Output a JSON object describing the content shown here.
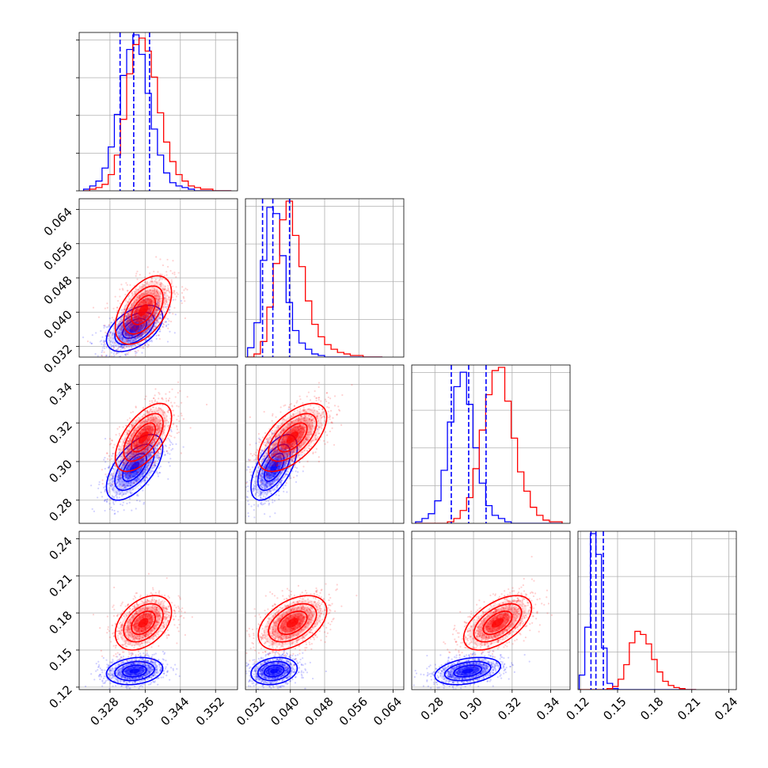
{
  "chart_data": {
    "type": "scatter",
    "subtype": "corner-plot",
    "grid": true,
    "series": [
      {
        "color": "#0000ff"
      },
      {
        "color": "#ff0000"
      }
    ],
    "parameters": [
      {
        "range": [
          0.321,
          0.357
        ],
        "ticks": [
          "0.328",
          "0.336",
          "0.344",
          "0.352"
        ]
      },
      {
        "range": [
          0.0295,
          0.0665
        ],
        "ticks": [
          "0.032",
          "0.040",
          "0.048",
          "0.056",
          "0.064"
        ]
      },
      {
        "range": [
          0.268,
          0.35
        ],
        "ticks": [
          "0.28",
          "0.30",
          "0.32",
          "0.34"
        ]
      },
      {
        "range": [
          0.118,
          0.246
        ],
        "ticks": [
          "0.12",
          "0.15",
          "0.18",
          "0.21",
          "0.24"
        ]
      }
    ],
    "series_stats": [
      {
        "mean": [
          0.3336,
          0.0362,
          0.297,
          0.133
        ],
        "sd": [
          0.0032,
          0.0027,
          0.0085,
          0.0055
        ],
        "rho": [
          [
            1,
            0.5,
            0.6,
            0.2
          ],
          [
            0.5,
            1,
            0.6,
            0.2
          ],
          [
            0.6,
            0.6,
            1,
            0.35
          ],
          [
            0.2,
            0.2,
            0.35,
            1
          ]
        ]
      },
      {
        "mean": [
          0.3356,
          0.0405,
          0.3125,
          0.172
        ],
        "sd": [
          0.0032,
          0.004,
          0.0088,
          0.011
        ],
        "rho": [
          [
            1,
            0.5,
            0.6,
            0.4
          ],
          [
            0.5,
            1,
            0.6,
            0.45
          ],
          [
            0.6,
            0.6,
            1,
            0.55
          ],
          [
            0.4,
            0.45,
            0.55,
            1
          ]
        ]
      }
    ],
    "quantile_lines": [
      {
        "series": 0,
        "values": [
          [
            0.3303,
            0.3334,
            0.337
          ],
          [
            0.0335,
            0.0359,
            0.0398
          ],
          [
            0.2885,
            0.2975,
            0.3065
          ],
          [
            0.1285,
            0.1325,
            0.1385
          ]
        ]
      }
    ],
    "histograms": [
      {
        "bins": [
          0.322,
          0.3234,
          0.3248,
          0.3262,
          0.3276,
          0.329,
          0.3304,
          0.3318,
          0.3332,
          0.3346,
          0.336,
          0.3374,
          0.3388,
          0.3402,
          0.3416,
          0.343,
          0.3444,
          0.3458,
          0.3472,
          0.3486,
          0.35,
          0.3514,
          0.3528,
          0.3542,
          0.3556
        ],
        "counts": [
          [
            1,
            3,
            6,
            14,
            27,
            47,
            71,
            87,
            96,
            84,
            60,
            38,
            22,
            11,
            5,
            3,
            2,
            1,
            0,
            0,
            0,
            0,
            0,
            0
          ],
          [
            0,
            1,
            2,
            4,
            10,
            22,
            44,
            72,
            90,
            94,
            86,
            70,
            48,
            30,
            18,
            10,
            6,
            3,
            2,
            1,
            1,
            0,
            0,
            0
          ]
        ]
      },
      {
        "bins": [
          0.03,
          0.0315,
          0.033,
          0.0345,
          0.036,
          0.0375,
          0.039,
          0.0405,
          0.042,
          0.0435,
          0.045,
          0.0465,
          0.048,
          0.0495,
          0.051,
          0.0525,
          0.054,
          0.0555,
          0.057,
          0.0585,
          0.06,
          0.0615
        ],
        "counts": [
          [
            6,
            22,
            62,
            96,
            92,
            65,
            35,
            17,
            9,
            5,
            2,
            1,
            0,
            0,
            0,
            0,
            0,
            0,
            0,
            0,
            0,
            0
          ],
          [
            0,
            2,
            10,
            32,
            60,
            88,
            100,
            78,
            58,
            36,
            21,
            13,
            8,
            5,
            3,
            2,
            1,
            1,
            0,
            0,
            0,
            0
          ]
        ]
      },
      {
        "bins": [
          0.27,
          0.2733,
          0.2766,
          0.2799,
          0.2832,
          0.2865,
          0.2898,
          0.2931,
          0.2964,
          0.2997,
          0.303,
          0.3063,
          0.3096,
          0.3129,
          0.3162,
          0.3195,
          0.3228,
          0.3261,
          0.3294,
          0.3327,
          0.336,
          0.3393,
          0.3426,
          0.3459
        ],
        "counts": [
          [
            1,
            3,
            6,
            14,
            33,
            63,
            85,
            94,
            74,
            47,
            25,
            11,
            5,
            3,
            1,
            0,
            0,
            0,
            0,
            0,
            0,
            0,
            0
          ],
          [
            0,
            0,
            0,
            0,
            0,
            1,
            3,
            8,
            16,
            34,
            58,
            80,
            95,
            97,
            76,
            53,
            32,
            20,
            10,
            5,
            2,
            1,
            1
          ]
        ]
      },
      {
        "bins": [
          0.119,
          0.1235,
          0.128,
          0.1325,
          0.137,
          0.1415,
          0.146,
          0.1505,
          0.155,
          0.1595,
          0.164,
          0.1685,
          0.173,
          0.1775,
          0.182,
          0.1865,
          0.191,
          0.1955,
          0.2,
          0.2045,
          0.209,
          0.2135
        ],
        "counts": [
          [
            14,
            60,
            150,
            130,
            40,
            6,
            1,
            0,
            0,
            0,
            0,
            0,
            0,
            0,
            0,
            0,
            0,
            0,
            0,
            0,
            0
          ],
          [
            0,
            0,
            0,
            0,
            0,
            1,
            3,
            10,
            24,
            45,
            56,
            53,
            44,
            29,
            17,
            8,
            4,
            2,
            1,
            0,
            0
          ]
        ]
      }
    ]
  }
}
